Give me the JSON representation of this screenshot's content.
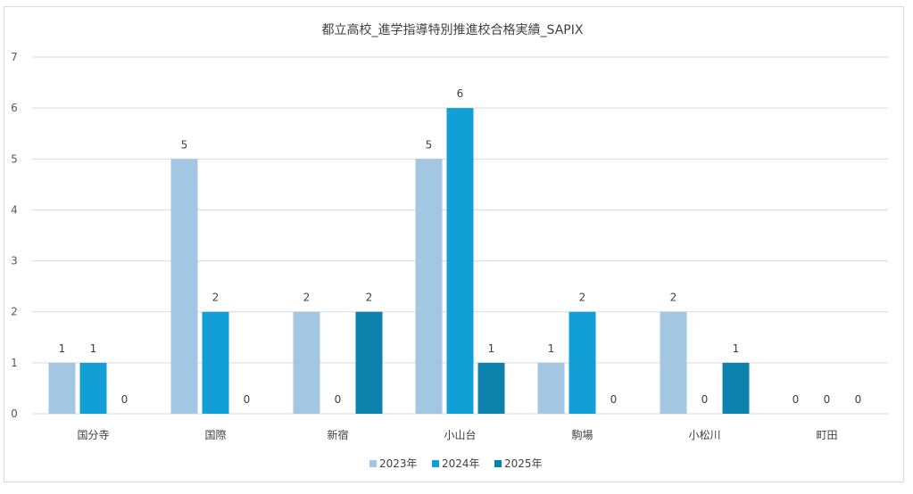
{
  "chart_data": {
    "type": "bar",
    "title": "都立高校_進学指導特別推進校合格実績_SAPIX",
    "xlabel": "",
    "ylabel": "",
    "ylim": [
      0,
      7
    ],
    "yticks": [
      0,
      1,
      2,
      3,
      4,
      5,
      6,
      7
    ],
    "grid": true,
    "legend_position": "bottom",
    "data_labels": true,
    "categories": [
      "国分寺",
      "国際",
      "新宿",
      "小山台",
      "駒場",
      "小松川",
      "町田"
    ],
    "series": [
      {
        "name": "2023年",
        "color": "#a3c6e3",
        "values": [
          1,
          5,
          2,
          5,
          1,
          2,
          0
        ]
      },
      {
        "name": "2024年",
        "color": "#119fd6",
        "values": [
          1,
          2,
          0,
          6,
          2,
          0,
          0
        ]
      },
      {
        "name": "2025年",
        "color": "#0b81ac",
        "values": [
          0,
          0,
          2,
          1,
          0,
          1,
          0
        ]
      }
    ]
  }
}
